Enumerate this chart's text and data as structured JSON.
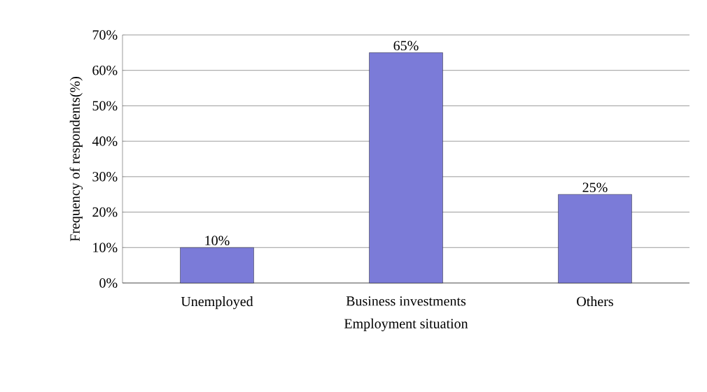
{
  "chart_data": {
    "type": "bar",
    "xlabel": "Employment situation",
    "ylabel": "Frequency of respondents(%)",
    "categories": [
      "Unemployed",
      "Business investments",
      "Others"
    ],
    "values": [
      10,
      65,
      25
    ],
    "color": "#7b7bd8",
    "value_labels": [
      "10%",
      "65%",
      "25%"
    ],
    "ylim": [
      0,
      70
    ],
    "yticks": [
      {
        "value": 0,
        "label": "0%"
      },
      {
        "value": 10,
        "label": "10%"
      },
      {
        "value": 20,
        "label": "20%"
      },
      {
        "value": 30,
        "label": "30%"
      },
      {
        "value": 40,
        "label": "40%"
      },
      {
        "value": 50,
        "label": "50%"
      },
      {
        "value": 60,
        "label": "60%"
      },
      {
        "value": 70,
        "label": "70%"
      }
    ],
    "grid": "y"
  }
}
